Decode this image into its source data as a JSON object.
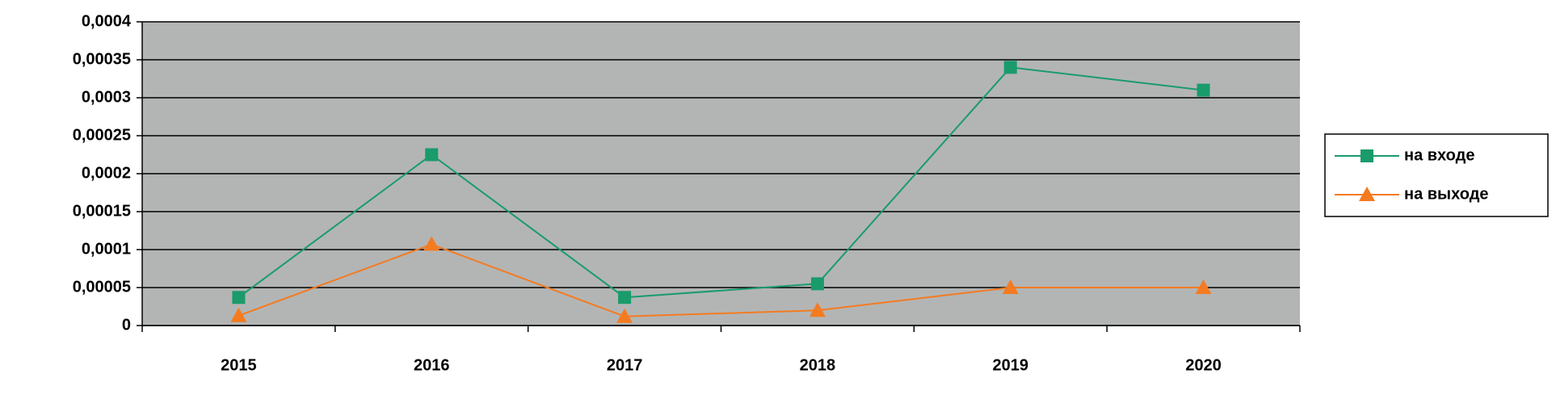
{
  "chart_data": {
    "type": "line",
    "categories": [
      "2015",
      "2016",
      "2017",
      "2018",
      "2019",
      "2020"
    ],
    "series": [
      {
        "name": "на входе",
        "color": "#1a9b6c",
        "marker": "square",
        "values": [
          3.7e-05,
          0.000225,
          3.7e-05,
          5.5e-05,
          0.00034,
          0.00031
        ]
      },
      {
        "name": "на выходе",
        "color": "#f47b20",
        "marker": "triangle",
        "values": [
          1.3e-05,
          0.000107,
          1.2e-05,
          2e-05,
          5e-05,
          5e-05
        ]
      }
    ],
    "ylim": [
      0,
      0.0004
    ],
    "yticks": [
      0,
      {
        "value": 5e-05,
        "label": "0,00005"
      },
      {
        "value": 0.0001,
        "label": "0,0001"
      },
      {
        "value": 0.00015,
        "label": "0,00015"
      },
      {
        "value": 0.0002,
        "label": "0,0002"
      },
      {
        "value": 0.00025,
        "label": "0,00025"
      },
      {
        "value": 0.0003,
        "label": "0,0003"
      },
      {
        "value": 0.00035,
        "label": "0,00035"
      },
      {
        "value": 0.0004,
        "label": "0,0004"
      }
    ],
    "grid": true,
    "plot_background": "#b3b5b5",
    "legend": "right"
  }
}
